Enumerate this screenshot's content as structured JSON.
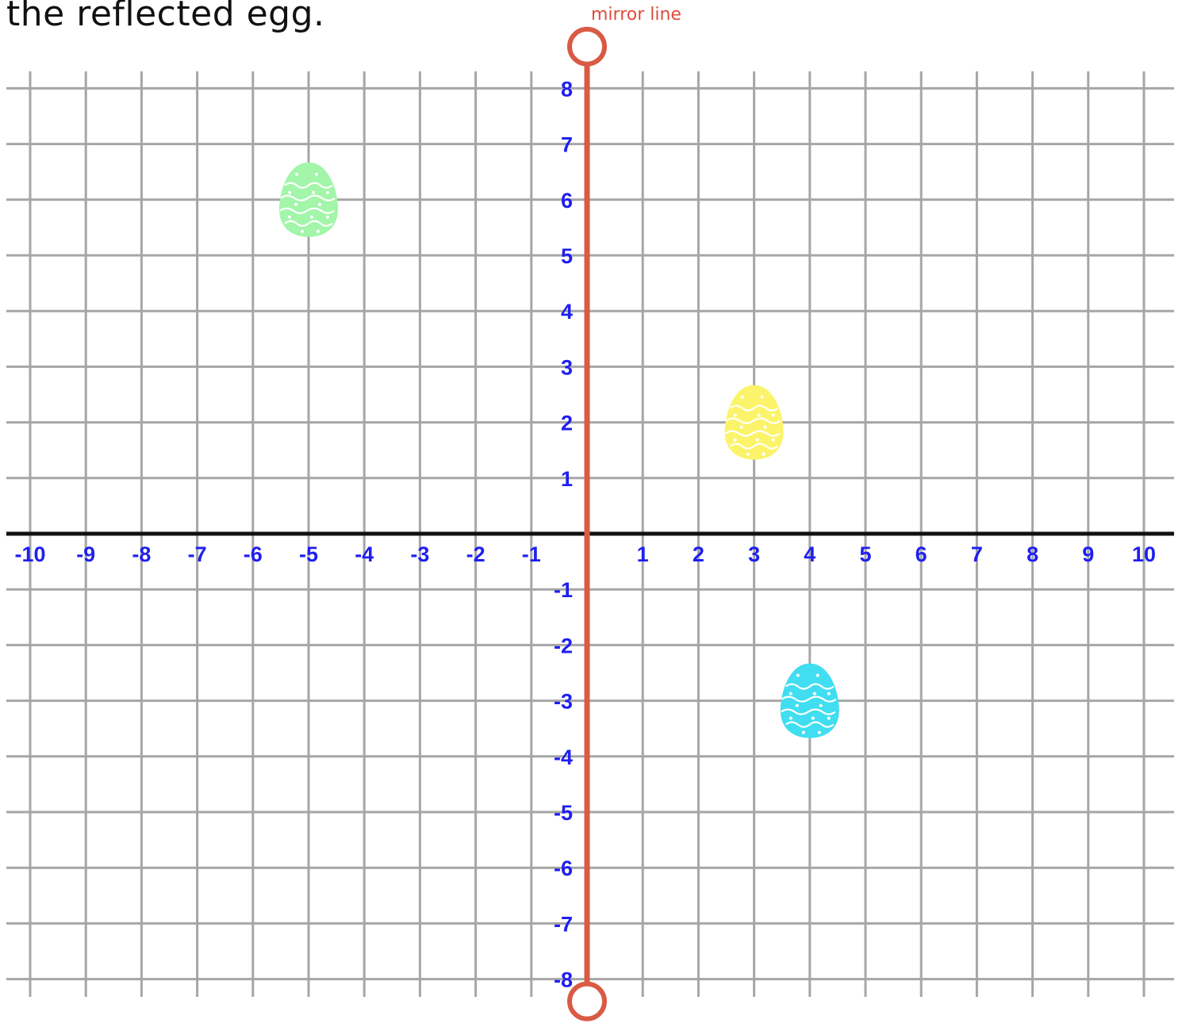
{
  "header": {
    "instruction": "the reflected egg.",
    "mirror_label": "mirror line"
  },
  "grid": {
    "x_range": [
      -10,
      10
    ],
    "y_range": [
      -8,
      8
    ],
    "x_ticks": [
      "-10",
      "-9",
      "-8",
      "-7",
      "-6",
      "-5",
      "-4",
      "-3",
      "-2",
      "-1",
      "1",
      "2",
      "3",
      "4",
      "5",
      "6",
      "7",
      "8",
      "9",
      "10"
    ],
    "y_ticks": [
      "8",
      "7",
      "6",
      "5",
      "4",
      "3",
      "2",
      "1",
      "-1",
      "-2",
      "-3",
      "-4",
      "-5",
      "-6",
      "-7",
      "-8"
    ],
    "grid_color": "#a6a6a6",
    "axis_color": "#111111",
    "label_color": "#1f1ff0"
  },
  "mirror_line": {
    "x": 0,
    "y_from": -8.4,
    "y_to": 8.75,
    "color": "#d95a45"
  },
  "eggs": [
    {
      "name": "green-egg",
      "x": -5,
      "y": 6,
      "color": "#a2f5a9"
    },
    {
      "name": "yellow-egg",
      "x": 3,
      "y": 2,
      "color": "#fbf46b"
    },
    {
      "name": "blue-egg",
      "x": 4,
      "y": -3,
      "color": "#40def0"
    }
  ]
}
